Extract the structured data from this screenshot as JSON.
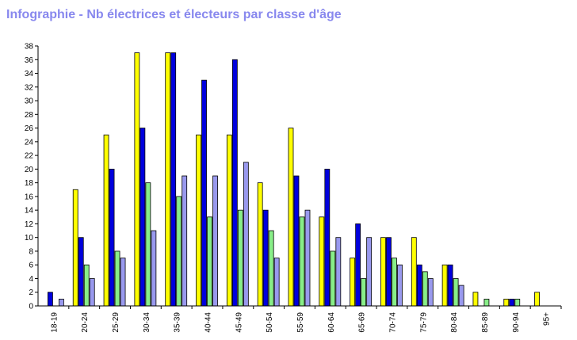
{
  "title": "Infographie - Nb électrices et électeurs par classe d'âge",
  "chart_data": {
    "type": "bar",
    "title": "Infographie - Nb électrices et électeurs par classe d'âge",
    "xlabel": "",
    "ylabel": "",
    "ylim": [
      0,
      38
    ],
    "ytick_step": 2,
    "grid": false,
    "categories": [
      "18-19",
      "20-24",
      "25-29",
      "30-34",
      "35-39",
      "40-44",
      "45-49",
      "50-54",
      "55-59",
      "60-64",
      "65-69",
      "70-74",
      "75-79",
      "80-84",
      "85-89",
      "90-94",
      "95+"
    ],
    "series": [
      {
        "color": "#ffff00",
        "values": [
          0,
          17,
          25,
          37,
          37,
          25,
          25,
          18,
          26,
          13,
          7,
          10,
          10,
          6,
          2,
          1,
          2
        ]
      },
      {
        "color": "#0000dd",
        "values": [
          2,
          10,
          20,
          26,
          37,
          33,
          36,
          14,
          19,
          20,
          12,
          10,
          6,
          6,
          0,
          1,
          0
        ]
      },
      {
        "color": "#88ee88",
        "values": [
          0,
          6,
          8,
          18,
          16,
          13,
          14,
          11,
          13,
          8,
          4,
          7,
          5,
          4,
          1,
          1,
          0
        ]
      },
      {
        "color": "#9999ee",
        "values": [
          1,
          4,
          7,
          11,
          19,
          19,
          21,
          7,
          14,
          10,
          10,
          6,
          4,
          3,
          0,
          0,
          0
        ]
      }
    ]
  }
}
